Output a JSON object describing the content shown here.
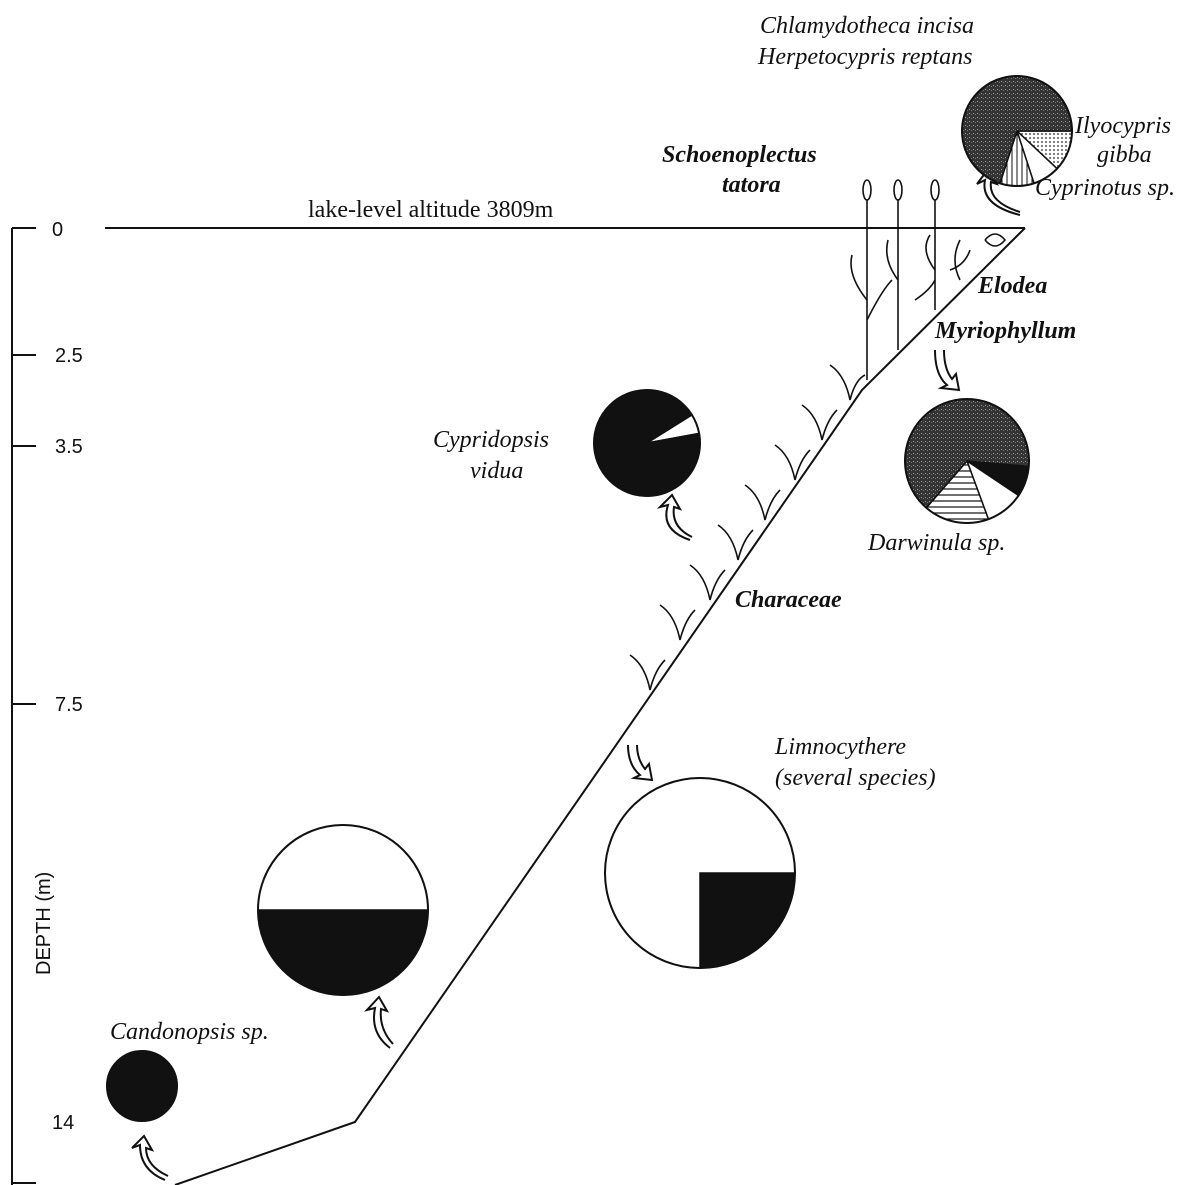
{
  "depth_axis": {
    "title": "DEPTH (m)",
    "ticks": [
      "0",
      "2.5",
      "3.5",
      "7.5",
      "14"
    ]
  },
  "lake_level": "lake-level altitude  3809m",
  "plants": {
    "schoenoplectus": [
      "Schoenoplectus",
      "tatora"
    ],
    "elodea": "Elodea",
    "myriophyllum": "Myriophyllum",
    "characeae": "Characeae"
  },
  "species_labels": {
    "top": [
      "Chlamydotheca incisa",
      "Herpetocypris reptans"
    ],
    "ilyocypris": [
      "Ilyocypris",
      "gibba"
    ],
    "cyprinotus": "Cyprinotus sp.",
    "cypridopsis": [
      "Cypridopsis",
      "vidua"
    ],
    "darwinula": "Darwinula sp.",
    "limnocythere": [
      "Limnocythere",
      "(several species)"
    ],
    "candonopsis": "Candonopsis sp."
  },
  "pies": [
    {
      "slices": [
        {
          "fill": "dots",
          "value": 12
        },
        {
          "fill": "white",
          "value": 8
        },
        {
          "fill": "vlines",
          "value": 10
        },
        {
          "fill": "stipple",
          "value": 70
        }
      ]
    },
    {
      "slices": [
        {
          "fill": "white",
          "value": 6
        },
        {
          "fill": "black",
          "value": 94
        }
      ]
    },
    {
      "slices": [
        {
          "fill": "black",
          "value": 8
        },
        {
          "fill": "white",
          "value": 10
        },
        {
          "fill": "hlines",
          "value": 17
        },
        {
          "fill": "stipple",
          "value": 65
        }
      ]
    },
    {
      "slices": [
        {
          "fill": "black",
          "value": 25
        },
        {
          "fill": "white",
          "value": 75
        }
      ]
    },
    {
      "slices": [
        {
          "fill": "black",
          "value": 50
        },
        {
          "fill": "white",
          "value": 50
        }
      ]
    },
    {
      "slices": [
        {
          "fill": "black",
          "value": 100
        }
      ]
    }
  ]
}
